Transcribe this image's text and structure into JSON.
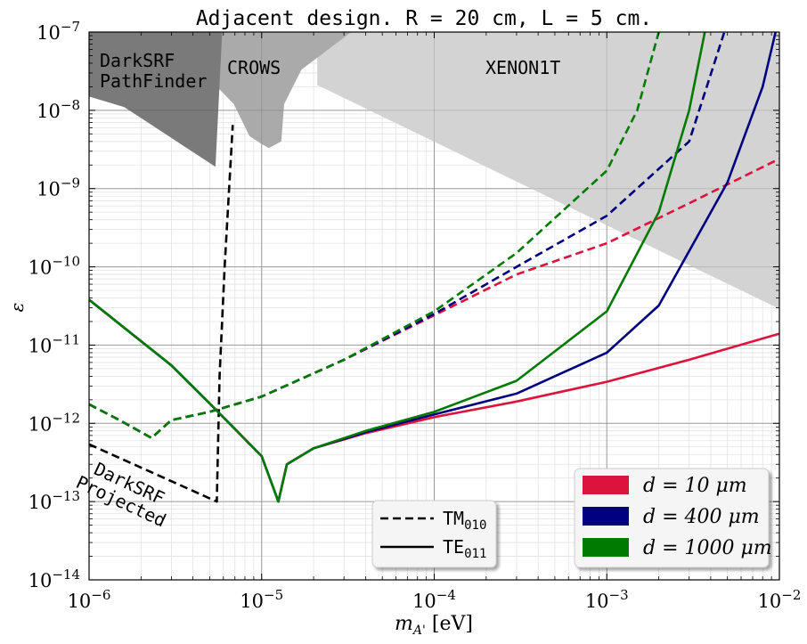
{
  "chart_data": {
    "type": "line",
    "title": "Adjacent design. R = 20 cm, L = 5 cm.",
    "xlabel": "m_A' [eV]",
    "ylabel": "ε",
    "x_scale": "log",
    "y_scale": "log",
    "xlim": [
      1e-06,
      0.01
    ],
    "ylim": [
      1e-14,
      1e-07
    ],
    "x_ticks": [
      {
        "value": 1e-06,
        "label": "10^-6"
      },
      {
        "value": 1e-05,
        "label": "10^-5"
      },
      {
        "value": 0.0001,
        "label": "10^-4"
      },
      {
        "value": 0.001,
        "label": "10^-3"
      },
      {
        "value": 0.01,
        "label": "10^-2"
      }
    ],
    "y_ticks": [
      {
        "value": 1e-14,
        "label": "10^-14"
      },
      {
        "value": 1e-13,
        "label": "10^-13"
      },
      {
        "value": 1e-12,
        "label": "10^-12"
      },
      {
        "value": 1e-11,
        "label": "10^-11"
      },
      {
        "value": 1e-10,
        "label": "10^-10"
      },
      {
        "value": 1e-09,
        "label": "10^-9"
      },
      {
        "value": 1e-08,
        "label": "10^-8"
      },
      {
        "value": 1e-07,
        "label": "10^-7"
      }
    ],
    "grid": true,
    "excluded_regions": [
      {
        "label": "XENON1T",
        "color": "#d3d3d3",
        "points": [
          [
            2.1e-05,
            1e-07
          ],
          [
            0.01,
            1e-07
          ],
          [
            0.01,
            2.9e-11
          ],
          [
            2.1e-05,
            2.1e-08
          ]
        ]
      },
      {
        "label": "CROWS",
        "color": "#aaaaaa",
        "points": [
          [
            5e-06,
            1e-07
          ],
          [
            3.3e-05,
            1e-07
          ],
          [
            1.7e-05,
            3.3e-08
          ],
          [
            1.35e-05,
            1.2e-08
          ],
          [
            1.3e-05,
            4e-09
          ],
          [
            1.1e-05,
            3.3e-09
          ],
          [
            1e-05,
            3.7e-09
          ],
          [
            8.5e-06,
            4.7e-09
          ],
          [
            6.9e-06,
            1.2e-08
          ],
          [
            5e-06,
            2.5e-08
          ]
        ]
      },
      {
        "label": "DarkSRF\nPathFinder",
        "color": "#7a7a7a",
        "points": [
          [
            1e-06,
            1e-07
          ],
          [
            5.9e-06,
            1e-07
          ],
          [
            5.4e-06,
            1.9e-09
          ],
          [
            1.6e-06,
            1.1e-08
          ],
          [
            1e-06,
            1.5e-08
          ]
        ]
      }
    ],
    "annotations": [
      {
        "text": "DarkSRF\nProjected",
        "x": 1.05e-06,
        "y": 2.3e-13,
        "rotation": -25
      }
    ],
    "series": [
      {
        "name": "DarkSRF Projected",
        "color": "#000000",
        "dash": "dashed",
        "show_in_legend": false,
        "points": [
          [
            1e-06,
            5.4e-13
          ],
          [
            5.5e-06,
            1e-13
          ],
          [
            5.7e-06,
            4e-12
          ],
          [
            6.1e-06,
            1e-10
          ],
          [
            6.8e-06,
            6.5e-09
          ]
        ]
      },
      {
        "name": "TM010 d=10",
        "color": "#dc143c",
        "dash": "dashed",
        "show_in_legend": false,
        "points": [
          [
            1e-06,
            1.75e-12
          ],
          [
            1.5e-06,
            1.1e-12
          ],
          [
            2.3e-06,
            6.5e-13
          ],
          [
            3e-06,
            1.1e-12
          ],
          [
            5e-06,
            1.4e-12
          ],
          [
            1e-05,
            2.2e-12
          ],
          [
            3e-05,
            6.5e-12
          ],
          [
            0.0001,
            2.4e-11
          ],
          [
            0.0003,
            8e-11
          ],
          [
            0.001,
            2e-10
          ],
          [
            0.003,
            6.5e-10
          ],
          [
            0.01,
            2.4e-09
          ]
        ]
      },
      {
        "name": "TM010 d=400",
        "color": "#000080",
        "dash": "dashed",
        "show_in_legend": false,
        "points": [
          [
            1e-06,
            1.75e-12
          ],
          [
            1.5e-06,
            1.1e-12
          ],
          [
            2.3e-06,
            6.5e-13
          ],
          [
            3e-06,
            1.1e-12
          ],
          [
            5e-06,
            1.4e-12
          ],
          [
            1e-05,
            2.2e-12
          ],
          [
            3e-05,
            6.5e-12
          ],
          [
            0.0001,
            2.5e-11
          ],
          [
            0.0003,
            1e-10
          ],
          [
            0.001,
            4.5e-10
          ],
          [
            0.003,
            4e-09
          ],
          [
            0.0048,
            1e-07
          ]
        ]
      },
      {
        "name": "TM010 d=1000",
        "color": "#007a00",
        "dash": "dashed",
        "show_in_legend": false,
        "points": [
          [
            1e-06,
            1.75e-12
          ],
          [
            1.5e-06,
            1.1e-12
          ],
          [
            2.3e-06,
            6.5e-13
          ],
          [
            3e-06,
            1.1e-12
          ],
          [
            5e-06,
            1.4e-12
          ],
          [
            1e-05,
            2.2e-12
          ],
          [
            3e-05,
            6.5e-12
          ],
          [
            0.0001,
            2.7e-11
          ],
          [
            0.0003,
            1.5e-10
          ],
          [
            0.001,
            1.7e-09
          ],
          [
            0.0015,
            1e-08
          ],
          [
            0.002,
            1e-07
          ]
        ]
      },
      {
        "name": "TE011 d=10",
        "color": "#dc143c",
        "dash": "solid",
        "show_in_legend": false,
        "points": [
          [
            1e-06,
            3.8e-11
          ],
          [
            3e-06,
            5.5e-12
          ],
          [
            5e-06,
            1.8e-12
          ],
          [
            1e-05,
            3.8e-13
          ],
          [
            1.25e-05,
            1e-13
          ],
          [
            1.4e-05,
            3e-13
          ],
          [
            2e-05,
            4.8e-13
          ],
          [
            4e-05,
            7.5e-13
          ],
          [
            0.0001,
            1.2e-12
          ],
          [
            0.0003,
            1.9e-12
          ],
          [
            0.001,
            3.4e-12
          ],
          [
            0.003,
            6.5e-12
          ],
          [
            0.01,
            1.4e-11
          ]
        ]
      },
      {
        "name": "TE011 d=400",
        "color": "#000080",
        "dash": "solid",
        "show_in_legend": false,
        "points": [
          [
            1e-06,
            3.8e-11
          ],
          [
            3e-06,
            5.5e-12
          ],
          [
            5e-06,
            1.8e-12
          ],
          [
            1e-05,
            3.8e-13
          ],
          [
            1.25e-05,
            1e-13
          ],
          [
            1.4e-05,
            3e-13
          ],
          [
            2e-05,
            4.8e-13
          ],
          [
            4e-05,
            7.7e-13
          ],
          [
            0.0001,
            1.3e-12
          ],
          [
            0.0003,
            2.4e-12
          ],
          [
            0.001,
            8e-12
          ],
          [
            0.002,
            3.2e-11
          ],
          [
            0.005,
            1.2e-09
          ],
          [
            0.008,
            2e-08
          ],
          [
            0.0095,
            1e-07
          ]
        ]
      },
      {
        "name": "TE011 d=1000",
        "color": "#007a00",
        "dash": "solid",
        "show_in_legend": false,
        "points": [
          [
            1e-06,
            3.8e-11
          ],
          [
            3e-06,
            5.5e-12
          ],
          [
            5e-06,
            1.8e-12
          ],
          [
            1e-05,
            3.8e-13
          ],
          [
            1.25e-05,
            1e-13
          ],
          [
            1.4e-05,
            3e-13
          ],
          [
            2e-05,
            4.8e-13
          ],
          [
            4e-05,
            8e-13
          ],
          [
            0.0001,
            1.4e-12
          ],
          [
            0.0003,
            3.5e-12
          ],
          [
            0.001,
            2.7e-11
          ],
          [
            0.002,
            5e-10
          ],
          [
            0.003,
            1e-08
          ],
          [
            0.0037,
            1e-07
          ]
        ]
      }
    ],
    "legend_mode": {
      "placement": "lower-center",
      "entries": [
        {
          "label": "TM",
          "sub": "010",
          "dash": "dashed"
        },
        {
          "label": "TE",
          "sub": "011",
          "dash": "solid"
        }
      ]
    },
    "legend_thickness": {
      "placement": "lower-right",
      "entries": [
        {
          "label": "d = 10 μm",
          "color": "#dc143c"
        },
        {
          "label": "d = 400 μm",
          "color": "#000080"
        },
        {
          "label": "d = 1000 μm",
          "color": "#007a00"
        }
      ]
    }
  }
}
